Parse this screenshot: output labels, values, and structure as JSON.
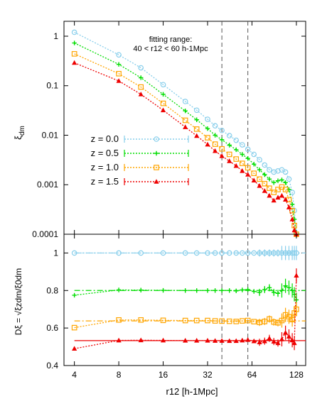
{
  "chart_data": [
    {
      "type": "line",
      "panel": "top",
      "xscale": "log2",
      "yscale": "log10",
      "xlim": [
        3.4,
        148
      ],
      "ylim": [
        0.0001,
        2
      ],
      "yticks": [
        0.0001,
        0.001,
        0.01,
        0.1,
        1
      ],
      "ytick_labels": [
        "0.0001",
        "0.001",
        "0.01",
        "0.1",
        "1"
      ],
      "ylabel": "ξdm",
      "ylabel_main": "ξ",
      "ylabel_sub": "dm",
      "annotation_line1": "fitting range:",
      "annotation_line2": "40 < r12 < 60 h-1Mpc",
      "vlines": [
        40,
        60
      ],
      "series": [
        {
          "name": "z = 0.0",
          "color": "#87ceeb",
          "marker": "circle",
          "x": [
            4,
            8,
            11.3,
            16,
            22.6,
            27,
            32,
            36,
            40,
            45,
            50,
            55,
            60,
            66,
            72,
            78,
            84,
            90,
            96,
            102,
            108,
            114,
            120,
            124,
            128
          ],
          "y": [
            1.2,
            0.42,
            0.23,
            0.105,
            0.048,
            0.032,
            0.021,
            0.0155,
            0.0125,
            0.0098,
            0.0079,
            0.0064,
            0.0052,
            0.0041,
            0.0032,
            0.0025,
            0.002,
            0.0018,
            0.0019,
            0.002,
            0.0018,
            0.0013,
            0.0007,
            0.0003,
            0.0001
          ]
        },
        {
          "name": "z = 0.5",
          "color": "#00dd00",
          "marker": "plus",
          "x": [
            4,
            8,
            11.3,
            16,
            22.6,
            27,
            32,
            36,
            40,
            45,
            50,
            55,
            60,
            66,
            72,
            78,
            84,
            90,
            96,
            102,
            108,
            114,
            120,
            124,
            128
          ],
          "y": [
            0.73,
            0.27,
            0.145,
            0.067,
            0.031,
            0.0205,
            0.0136,
            0.01,
            0.0081,
            0.0063,
            0.0051,
            0.0041,
            0.0034,
            0.0026,
            0.002,
            0.0016,
            0.0013,
            0.0011,
            0.0012,
            0.00125,
            0.0011,
            0.0008,
            0.0004,
            0.0002,
            0.0001
          ]
        },
        {
          "name": "z = 1.0",
          "color": "#ffa500",
          "marker": "square",
          "x": [
            4,
            8,
            11.3,
            16,
            22.6,
            27,
            32,
            36,
            40,
            45,
            50,
            55,
            60,
            66,
            72,
            78,
            84,
            90,
            96,
            102,
            108,
            114,
            120,
            124,
            128
          ],
          "y": [
            0.44,
            0.175,
            0.094,
            0.044,
            0.02,
            0.0133,
            0.0089,
            0.0066,
            0.0053,
            0.0041,
            0.0033,
            0.0027,
            0.0022,
            0.0017,
            0.0013,
            0.00105,
            0.00085,
            0.0007,
            0.0008,
            0.0009,
            0.0008,
            0.0005,
            0.0003,
            0.00015,
            0.0001
          ]
        },
        {
          "name": "z = 1.5",
          "color": "#ee0000",
          "marker": "triangle",
          "x": [
            4,
            8,
            11.3,
            16,
            22.6,
            27,
            32,
            36,
            40,
            45,
            50,
            55,
            60,
            66,
            72,
            78,
            84,
            90,
            96,
            102,
            108,
            114,
            120,
            124,
            128
          ],
          "y": [
            0.29,
            0.125,
            0.067,
            0.032,
            0.0146,
            0.0097,
            0.0065,
            0.0048,
            0.0038,
            0.003,
            0.0024,
            0.0019,
            0.0016,
            0.00122,
            0.00095,
            0.00075,
            0.0006,
            0.00048,
            0.00055,
            0.0006,
            0.0005,
            0.00035,
            0.0002,
            0.00012,
            0.0001
          ]
        }
      ]
    },
    {
      "type": "line",
      "panel": "bottom",
      "xscale": "log2",
      "xlim": [
        3.4,
        148
      ],
      "ylim": [
        0.4,
        1.1
      ],
      "yticks": [
        0.4,
        0.6,
        0.8,
        1
      ],
      "ytick_labels": [
        "0.4",
        "0.6",
        "0.8",
        "1"
      ],
      "xticks": [
        4,
        8,
        16,
        32,
        64,
        128
      ],
      "xtick_labels": [
        "4",
        "8",
        "16",
        "32",
        "64",
        "128"
      ],
      "xlabel": "r12 [h-1Mpc]",
      "ylabel": "Dξ = √ξzdm/ξ0dm",
      "vlines": [
        40,
        60
      ],
      "series": [
        {
          "name": "z = 0.0",
          "color": "#87ceeb",
          "marker": "circle",
          "fit": 1.0,
          "x": [
            4,
            8,
            11.3,
            16,
            22.6,
            27,
            32,
            36,
            40,
            45,
            50,
            55,
            60,
            66,
            72,
            78,
            84,
            90,
            96,
            102,
            108,
            114,
            120,
            124,
            128
          ],
          "y": [
            1,
            1,
            1,
            1,
            1,
            1,
            1,
            1,
            1,
            1,
            1,
            1,
            1,
            1,
            1,
            1,
            1,
            1,
            1,
            1,
            1,
            1,
            1,
            1,
            1
          ]
        },
        {
          "name": "z = 0.5",
          "color": "#00dd00",
          "marker": "plus",
          "fit": 0.8,
          "x": [
            4,
            8,
            11.3,
            16,
            22.6,
            27,
            32,
            36,
            40,
            45,
            50,
            55,
            60,
            66,
            72,
            78,
            84,
            90,
            96,
            102,
            108,
            114,
            120,
            124,
            128
          ],
          "y": [
            0.775,
            0.803,
            0.802,
            0.801,
            0.8,
            0.8,
            0.8,
            0.8,
            0.8,
            0.8,
            0.798,
            0.803,
            0.805,
            0.795,
            0.79,
            0.805,
            0.815,
            0.79,
            0.785,
            0.8,
            0.825,
            0.815,
            0.8,
            0.78,
            0.75
          ]
        },
        {
          "name": "z = 1.0",
          "color": "#ffa500",
          "marker": "square",
          "fit": 0.638,
          "x": [
            4,
            8,
            11.3,
            16,
            22.6,
            27,
            32,
            36,
            40,
            45,
            50,
            55,
            60,
            66,
            72,
            78,
            84,
            90,
            96,
            102,
            108,
            114,
            120,
            124,
            128
          ],
          "y": [
            0.602,
            0.643,
            0.643,
            0.641,
            0.64,
            0.64,
            0.64,
            0.638,
            0.637,
            0.636,
            0.635,
            0.638,
            0.64,
            0.634,
            0.63,
            0.635,
            0.648,
            0.632,
            0.628,
            0.64,
            0.67,
            0.66,
            0.645,
            0.68,
            0.7
          ]
        },
        {
          "name": "z = 1.5",
          "color": "#ee0000",
          "marker": "triangle",
          "fit": 0.533,
          "x": [
            4,
            8,
            11.3,
            16,
            22.6,
            27,
            32,
            36,
            40,
            45,
            50,
            55,
            60,
            66,
            72,
            78,
            84,
            90,
            96,
            102,
            108,
            114,
            120,
            124,
            128
          ],
          "y": [
            0.49,
            0.534,
            0.535,
            0.534,
            0.533,
            0.533,
            0.533,
            0.532,
            0.532,
            0.531,
            0.531,
            0.534,
            0.537,
            0.53,
            0.524,
            0.53,
            0.545,
            0.528,
            0.52,
            0.54,
            0.575,
            0.555,
            0.535,
            0.52,
            0.88
          ]
        }
      ]
    }
  ]
}
